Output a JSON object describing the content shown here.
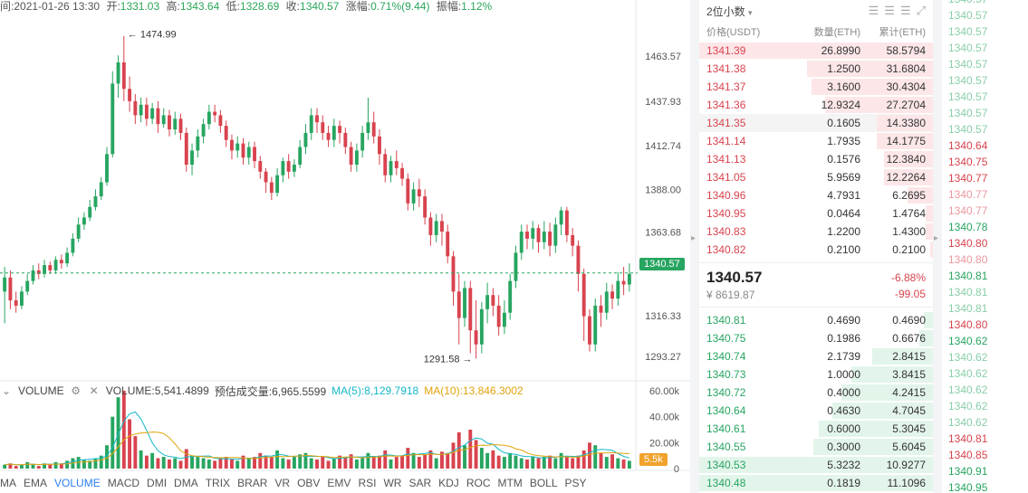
{
  "ohlc": {
    "time_label": "间:",
    "time": "2021-01-26 13:30",
    "open_label": "开:",
    "open": "1331.03",
    "high_label": "高:",
    "high": "1343.64",
    "low_label": "低:",
    "low": "1328.69",
    "close_label": "收:",
    "close": "1340.57",
    "change_label": "涨幅:",
    "change": "0.71%(9.44)",
    "amp_label": "振幅:",
    "amp": "1.12%"
  },
  "chart": {
    "price_ticks": [
      "1463.57",
      "1437.93",
      "1412.74",
      "1388.00",
      "1363.68",
      "1340.57",
      "1316.33",
      "1293.27"
    ],
    "current_price": "1340.57",
    "max_marker": "1474.99",
    "min_marker": "1291.58",
    "volume_ticks": [
      "60.00k",
      "40.00k",
      "20.00k",
      "0"
    ],
    "current_volume": "5.5k",
    "colors": {
      "up": "#27a561",
      "down": "#d8434e",
      "ma5": "#14b8c9",
      "ma10": "#e2a30d"
    }
  },
  "chart_data": {
    "type": "candlestick",
    "title": "",
    "ylim": [
      1285,
      1480
    ],
    "candles": [
      [
        1330,
        1338,
        1312,
        1344
      ],
      [
        1338,
        1325,
        1320,
        1342
      ],
      [
        1325,
        1322,
        1318,
        1330
      ],
      [
        1322,
        1330,
        1320,
        1333
      ],
      [
        1330,
        1336,
        1328,
        1340
      ],
      [
        1336,
        1342,
        1334,
        1345
      ],
      [
        1342,
        1340,
        1337,
        1346
      ],
      [
        1340,
        1345,
        1338,
        1348
      ],
      [
        1345,
        1342,
        1340,
        1347
      ],
      [
        1342,
        1348,
        1340,
        1350
      ],
      [
        1348,
        1346,
        1343,
        1351
      ],
      [
        1346,
        1352,
        1344,
        1355
      ],
      [
        1352,
        1360,
        1350,
        1363
      ],
      [
        1360,
        1368,
        1358,
        1372
      ],
      [
        1368,
        1372,
        1365,
        1375
      ],
      [
        1372,
        1378,
        1370,
        1382
      ],
      [
        1378,
        1384,
        1376,
        1388
      ],
      [
        1384,
        1392,
        1382,
        1395
      ],
      [
        1392,
        1408,
        1390,
        1412
      ],
      [
        1408,
        1448,
        1406,
        1455
      ],
      [
        1448,
        1460,
        1440,
        1464
      ],
      [
        1460,
        1445,
        1438,
        1475
      ],
      [
        1445,
        1438,
        1432,
        1452
      ],
      [
        1438,
        1430,
        1425,
        1442
      ],
      [
        1430,
        1436,
        1426,
        1440
      ],
      [
        1436,
        1428,
        1424,
        1440
      ],
      [
        1428,
        1434,
        1425,
        1437
      ],
      [
        1434,
        1425,
        1420,
        1438
      ],
      [
        1425,
        1430,
        1423,
        1434
      ],
      [
        1430,
        1422,
        1418,
        1433
      ],
      [
        1422,
        1428,
        1419,
        1432
      ],
      [
        1428,
        1420,
        1416,
        1431
      ],
      [
        1420,
        1402,
        1398,
        1423
      ],
      [
        1402,
        1410,
        1396,
        1414
      ],
      [
        1410,
        1418,
        1406,
        1422
      ],
      [
        1418,
        1425,
        1414,
        1428
      ],
      [
        1425,
        1432,
        1422,
        1436
      ],
      [
        1432,
        1430,
        1426,
        1436
      ],
      [
        1430,
        1424,
        1420,
        1433
      ],
      [
        1424,
        1416,
        1412,
        1427
      ],
      [
        1416,
        1410,
        1405,
        1419
      ],
      [
        1410,
        1414,
        1406,
        1418
      ],
      [
        1414,
        1406,
        1402,
        1417
      ],
      [
        1406,
        1412,
        1402,
        1415
      ],
      [
        1412,
        1404,
        1400,
        1415
      ],
      [
        1404,
        1398,
        1394,
        1407
      ],
      [
        1398,
        1392,
        1386,
        1400
      ],
      [
        1392,
        1386,
        1382,
        1395
      ],
      [
        1386,
        1396,
        1384,
        1400
      ],
      [
        1396,
        1404,
        1392,
        1406
      ],
      [
        1404,
        1398,
        1394,
        1408
      ],
      [
        1398,
        1402,
        1395,
        1405
      ],
      [
        1402,
        1412,
        1400,
        1416
      ],
      [
        1412,
        1420,
        1408,
        1425
      ],
      [
        1420,
        1430,
        1416,
        1434
      ],
      [
        1430,
        1426,
        1420,
        1434
      ],
      [
        1426,
        1420,
        1416,
        1430
      ],
      [
        1420,
        1416,
        1412,
        1424
      ],
      [
        1416,
        1424,
        1412,
        1428
      ],
      [
        1424,
        1420,
        1414,
        1427
      ],
      [
        1420,
        1412,
        1408,
        1423
      ],
      [
        1412,
        1402,
        1398,
        1415
      ],
      [
        1402,
        1410,
        1398,
        1414
      ],
      [
        1410,
        1420,
        1406,
        1424
      ],
      [
        1420,
        1426,
        1416,
        1440
      ],
      [
        1426,
        1418,
        1414,
        1432
      ],
      [
        1418,
        1408,
        1402,
        1422
      ],
      [
        1408,
        1396,
        1392,
        1411
      ],
      [
        1396,
        1404,
        1392,
        1407
      ],
      [
        1404,
        1400,
        1396,
        1410
      ],
      [
        1400,
        1394,
        1390,
        1403
      ],
      [
        1394,
        1380,
        1376,
        1397
      ],
      [
        1380,
        1388,
        1376,
        1392
      ],
      [
        1388,
        1384,
        1378,
        1394
      ],
      [
        1384,
        1372,
        1368,
        1388
      ],
      [
        1372,
        1362,
        1356,
        1375
      ],
      [
        1362,
        1370,
        1358,
        1374
      ],
      [
        1370,
        1364,
        1356,
        1374
      ],
      [
        1364,
        1350,
        1346,
        1368
      ],
      [
        1350,
        1330,
        1322,
        1353
      ],
      [
        1330,
        1315,
        1300,
        1340
      ],
      [
        1315,
        1332,
        1310,
        1336
      ],
      [
        1332,
        1308,
        1295,
        1336
      ],
      [
        1308,
        1300,
        1292,
        1325
      ],
      [
        1300,
        1320,
        1295,
        1324
      ],
      [
        1320,
        1328,
        1312,
        1335
      ],
      [
        1328,
        1322,
        1316,
        1332
      ],
      [
        1322,
        1310,
        1305,
        1328
      ],
      [
        1310,
        1318,
        1306,
        1325
      ],
      [
        1318,
        1336,
        1314,
        1340
      ],
      [
        1336,
        1352,
        1332,
        1356
      ],
      [
        1352,
        1364,
        1348,
        1368
      ],
      [
        1364,
        1360,
        1354,
        1368
      ],
      [
        1360,
        1366,
        1354,
        1370
      ],
      [
        1366,
        1358,
        1352,
        1368
      ],
      [
        1358,
        1364,
        1354,
        1370
      ],
      [
        1364,
        1356,
        1350,
        1369
      ],
      [
        1356,
        1368,
        1352,
        1372
      ],
      [
        1368,
        1376,
        1362,
        1378
      ],
      [
        1376,
        1362,
        1358,
        1378
      ],
      [
        1362,
        1356,
        1350,
        1366
      ],
      [
        1356,
        1340,
        1330,
        1359
      ],
      [
        1340,
        1316,
        1302,
        1343
      ],
      [
        1316,
        1300,
        1296,
        1320
      ],
      [
        1300,
        1322,
        1296,
        1326
      ],
      [
        1322,
        1318,
        1310,
        1328
      ],
      [
        1318,
        1330,
        1314,
        1335
      ],
      [
        1330,
        1326,
        1320,
        1334
      ],
      [
        1326,
        1336,
        1322,
        1341
      ],
      [
        1336,
        1334,
        1328,
        1344
      ],
      [
        1334,
        1340,
        1330,
        1346
      ]
    ],
    "volume": [
      3,
      4,
      2,
      3,
      5,
      3,
      2,
      4,
      3,
      5,
      4,
      6,
      8,
      9,
      7,
      6,
      8,
      10,
      18,
      40,
      55,
      60,
      38,
      25,
      14,
      10,
      12,
      8,
      9,
      7,
      8,
      6,
      15,
      10,
      9,
      8,
      7,
      6,
      8,
      9,
      7,
      6,
      10,
      8,
      9,
      12,
      10,
      9,
      14,
      8,
      7,
      9,
      11,
      12,
      8,
      7,
      9,
      6,
      8,
      10,
      9,
      11,
      7,
      8,
      12,
      9,
      10,
      14,
      7,
      9,
      10,
      16,
      12,
      9,
      11,
      14,
      8,
      13,
      12,
      20,
      28,
      18,
      30,
      22,
      16,
      12,
      14,
      10,
      9,
      12,
      10,
      8,
      7,
      9,
      8,
      9,
      10,
      8,
      12,
      9,
      8,
      10,
      14,
      20,
      18,
      12,
      9,
      11,
      8,
      7,
      6
    ]
  },
  "volume_legend": {
    "title": "VOLUME",
    "volume_text": "VOLUME:5,541.4899",
    "estimate_text": "预估成交量:6,965.5599",
    "ma5_text": "MA(5):8,129.7918",
    "ma10_text": "MA(10):13,846.3002"
  },
  "indicators": [
    "MA",
    "EMA",
    "VOLUME",
    "MACD",
    "DMI",
    "DMA",
    "TRIX",
    "BRAR",
    "VR",
    "OBV",
    "EMV",
    "RSI",
    "WR",
    "SAR",
    "KDJ",
    "ROC",
    "MTM",
    "BOLL",
    "PSY"
  ],
  "active_indicator": "VOLUME",
  "book": {
    "precision": "2位小数",
    "col_price": "价格(USDT)",
    "col_amount": "数量(ETH)",
    "col_total": "累计(ETH)",
    "asks": [
      {
        "price": "1341.39",
        "amount": "26.8990",
        "total": "58.5794",
        "depth": 100
      },
      {
        "price": "1341.38",
        "amount": "1.2500",
        "total": "31.6804",
        "depth": 54
      },
      {
        "price": "1341.37",
        "amount": "3.1600",
        "total": "30.4304",
        "depth": 52
      },
      {
        "price": "1341.36",
        "amount": "12.9324",
        "total": "27.2704",
        "depth": 46
      },
      {
        "price": "1341.35",
        "amount": "0.1605",
        "total": "14.3380",
        "depth": 24
      },
      {
        "price": "1341.14",
        "amount": "1.7935",
        "total": "14.1775",
        "depth": 24
      },
      {
        "price": "1341.13",
        "amount": "0.1576",
        "total": "12.3840",
        "depth": 21
      },
      {
        "price": "1341.05",
        "amount": "5.9569",
        "total": "12.2264",
        "depth": 21
      },
      {
        "price": "1340.96",
        "amount": "4.7931",
        "total": "6.2695",
        "depth": 11
      },
      {
        "price": "1340.95",
        "amount": "0.0464",
        "total": "1.4764",
        "depth": 3
      },
      {
        "price": "1340.83",
        "amount": "1.2200",
        "total": "1.4300",
        "depth": 3
      },
      {
        "price": "1340.82",
        "amount": "0.2100",
        "total": "0.2100",
        "depth": 1
      }
    ],
    "last_price": "1340.57",
    "fiat_price": "¥ 8619.87",
    "change_pct": "-6.88%",
    "change_abs": "-99.05",
    "bids": [
      {
        "price": "1340.81",
        "amount": "0.4690",
        "total": "0.4690",
        "depth": 4
      },
      {
        "price": "1340.75",
        "amount": "0.1986",
        "total": "0.6676",
        "depth": 6
      },
      {
        "price": "1340.74",
        "amount": "2.1739",
        "total": "2.8415",
        "depth": 26
      },
      {
        "price": "1340.73",
        "amount": "1.0000",
        "total": "3.8415",
        "depth": 35
      },
      {
        "price": "1340.72",
        "amount": "0.4000",
        "total": "4.2415",
        "depth": 39
      },
      {
        "price": "1340.64",
        "amount": "0.4630",
        "total": "4.7045",
        "depth": 43
      },
      {
        "price": "1340.61",
        "amount": "0.6000",
        "total": "5.3045",
        "depth": 49
      },
      {
        "price": "1340.55",
        "amount": "0.3000",
        "total": "5.6045",
        "depth": 51
      },
      {
        "price": "1340.53",
        "amount": "5.3232",
        "total": "10.9277",
        "depth": 100
      },
      {
        "price": "1340.48",
        "amount": "0.1819",
        "total": "11.1096",
        "depth": 100
      }
    ]
  },
  "trades": [
    {
      "p": "1340.57",
      "s": "up",
      "f": true
    },
    {
      "p": "1340.57",
      "s": "up",
      "f": true
    },
    {
      "p": "1340.57",
      "s": "up",
      "f": true
    },
    {
      "p": "1340.57",
      "s": "up",
      "f": true
    },
    {
      "p": "1340.57",
      "s": "up",
      "f": true
    },
    {
      "p": "1340.57",
      "s": "up",
      "f": true
    },
    {
      "p": "1340.57",
      "s": "up",
      "f": true
    },
    {
      "p": "1340.57",
      "s": "up",
      "f": true
    },
    {
      "p": "1340.57",
      "s": "up",
      "f": true
    },
    {
      "p": "1340.64",
      "s": "dn",
      "f": false
    },
    {
      "p": "1340.75",
      "s": "dn",
      "f": false
    },
    {
      "p": "1340.77",
      "s": "dn",
      "f": false
    },
    {
      "p": "1340.77",
      "s": "dn",
      "f": true
    },
    {
      "p": "1340.77",
      "s": "dn",
      "f": true
    },
    {
      "p": "1340.78",
      "s": "up",
      "f": false
    },
    {
      "p": "1340.80",
      "s": "dn",
      "f": false
    },
    {
      "p": "1340.80",
      "s": "dn",
      "f": true
    },
    {
      "p": "1340.81",
      "s": "up",
      "f": false
    },
    {
      "p": "1340.81",
      "s": "up",
      "f": true
    },
    {
      "p": "1340.81",
      "s": "up",
      "f": true
    },
    {
      "p": "1340.80",
      "s": "dn",
      "f": false
    },
    {
      "p": "1340.62",
      "s": "up",
      "f": false
    },
    {
      "p": "1340.62",
      "s": "up",
      "f": true
    },
    {
      "p": "1340.62",
      "s": "up",
      "f": true
    },
    {
      "p": "1340.62",
      "s": "up",
      "f": true
    },
    {
      "p": "1340.62",
      "s": "up",
      "f": true
    },
    {
      "p": "1340.62",
      "s": "up",
      "f": true
    },
    {
      "p": "1340.81",
      "s": "dn",
      "f": false
    },
    {
      "p": "1340.85",
      "s": "dn",
      "f": false
    },
    {
      "p": "1340.91",
      "s": "up",
      "f": false
    },
    {
      "p": "1340.95",
      "s": "up",
      "f": false
    }
  ]
}
